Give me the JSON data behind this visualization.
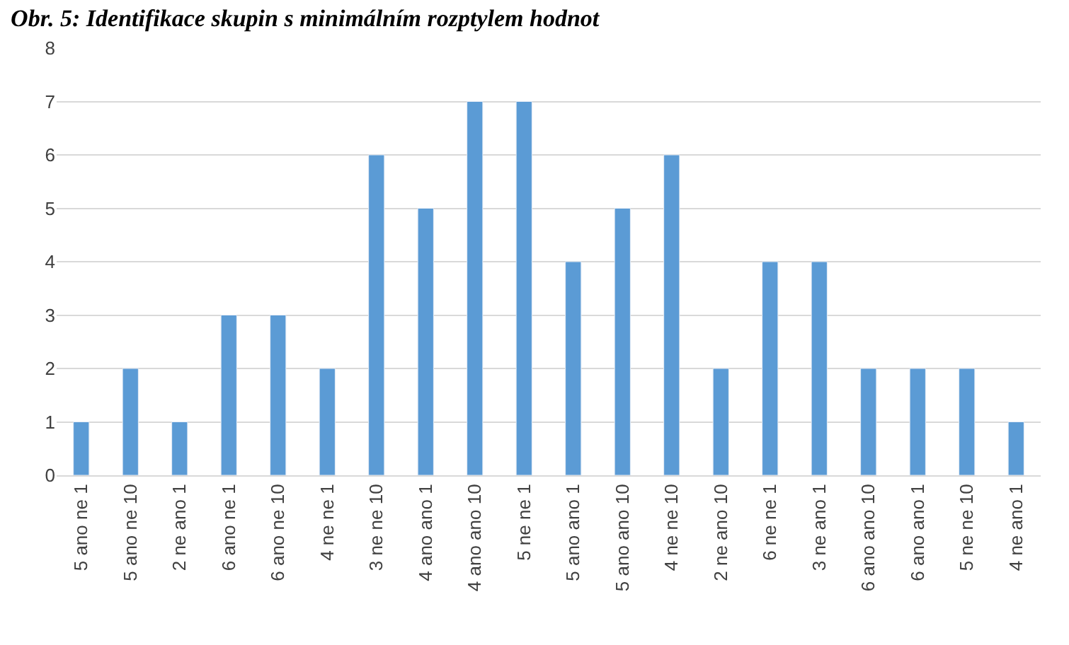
{
  "chart_data": {
    "type": "bar",
    "title": "Obr. 5: Identifikace skupin s minimálním rozptylem hodnot",
    "categories": [
      "5 ano ne 1",
      "5 ano ne 10",
      "2 ne ano 1",
      "6 ano ne 1",
      "6 ano ne 10",
      "4 ne ne 1",
      "3 ne ne 10",
      "4 ano ano 1",
      "4 ano ano 10",
      "5 ne ne 1",
      "5 ano ano 1",
      "5 ano ano 10",
      "4 ne ne 10",
      "2 ne ano 10",
      "6 ne ne 1",
      "3 ne ano 1",
      "6 ano ano 10",
      "6 ano ano 1",
      "5 ne ne 10",
      "4 ne ano 1"
    ],
    "values": [
      1,
      2,
      1,
      3,
      3,
      2,
      6,
      5,
      7,
      7,
      4,
      5,
      6,
      2,
      4,
      4,
      2,
      2,
      2,
      1
    ],
    "color": "#5b9bd5",
    "ylim": [
      0,
      8
    ],
    "yticks": [
      0,
      1,
      2,
      3,
      4,
      5,
      6,
      7,
      8
    ],
    "grid": "y"
  }
}
